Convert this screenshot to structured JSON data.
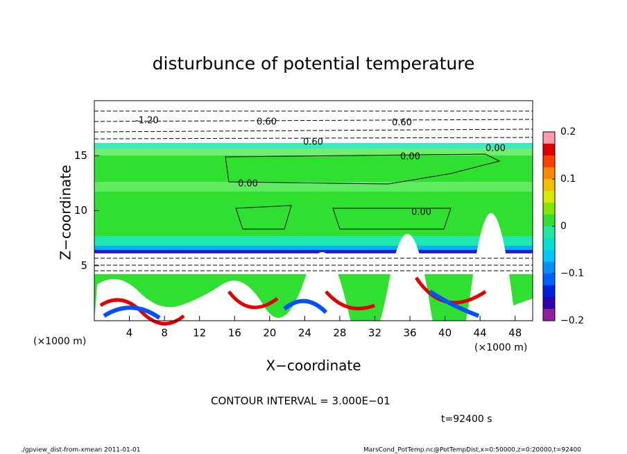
{
  "chart_data": {
    "type": "contour",
    "title": "disturbunce of potential temperature",
    "x_label": "X−coordinate",
    "y_label": "Z−coordinate",
    "x_unit": "(×1000 m)",
    "y_unit": "(×1000 m)",
    "xlim": [
      0,
      50
    ],
    "xticks": [
      4,
      8,
      12,
      16,
      20,
      24,
      28,
      32,
      36,
      40,
      44,
      48
    ],
    "ylim": [
      0,
      20
    ],
    "yticks": [
      5,
      10,
      15
    ],
    "contour_note": "CONTOUR INTERVAL = 3.000E−01",
    "time_note": "t=92400 s",
    "contour_labels": [
      "-1.20",
      "0.60",
      "0.60",
      "0.60",
      "0.00",
      "0.00",
      "0.00",
      "0.00"
    ],
    "colorbar": {
      "lim": [
        -0.2,
        0.2
      ],
      "ticks": [
        {
          "value": -0.2,
          "label": "−0.2"
        },
        {
          "value": -0.1,
          "label": "−0.1"
        },
        0,
        0.1,
        0.2
      ],
      "levels": [
        -0.2,
        -0.175,
        -0.15,
        -0.125,
        -0.1,
        -0.075,
        -0.05,
        -0.025,
        0,
        0.025,
        0.05,
        0.075,
        0.1,
        0.125,
        0.15,
        0.175,
        0.2
      ],
      "colors": [
        "#9020a0",
        "#3000b0",
        "#0020e0",
        "#0060ff",
        "#0090ff",
        "#00c8ff",
        "#00e0d0",
        "#20e8a0",
        "#30e030",
        "#80e800",
        "#d8e800",
        "#f0c000",
        "#ff8800",
        "#ff4000",
        "#e00000",
        "#ff9aa8"
      ]
    }
  },
  "footer": {
    "left": "./gpview_dist-from-xmean   2011-01-01",
    "right": "MarsCond_PotTemp.nc@PotTempDist,x=0:50000,z=0:20000,t=92400"
  }
}
